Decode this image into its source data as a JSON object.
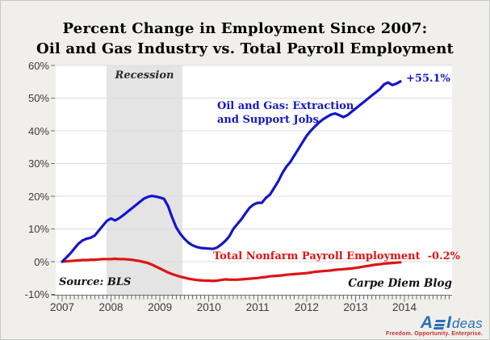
{
  "title": {
    "line1": "Percent Change in Employment Since 2007:",
    "line2": "Oil and Gas Industry vs. Total Payroll Employment"
  },
  "chart_data": {
    "type": "line",
    "title": "Percent Change in Employment Since 2007: Oil and Gas Industry vs. Total Payroll Employment",
    "x_start": "2007-01",
    "x_frequency": "monthly",
    "x_tick_labels": [
      "2007",
      "2008",
      "2009",
      "2010",
      "2011",
      "2012",
      "2013",
      "2014"
    ],
    "y_tick_labels": [
      "60%",
      "50%",
      "40%",
      "30%",
      "20%",
      "10%",
      "0%",
      "-10%"
    ],
    "ylim": [
      -10,
      60
    ],
    "y_step": 10,
    "grid": "horizontal",
    "recession_band": {
      "label": "Recession",
      "start_month": "2007-12",
      "end_month": "2009-06",
      "color": "#e4e4e4"
    },
    "series": [
      {
        "name": "Oil and Gas: Extraction and Support Jobs",
        "label_line1": "Oil and Gas: Extraction",
        "label_line2": "and Support Jobs",
        "end_label": "+55.1%",
        "color": "#1515cb",
        "values": [
          0.0,
          1.2,
          2.5,
          4.0,
          5.5,
          6.5,
          7.0,
          7.3,
          8.0,
          9.5,
          11.0,
          12.5,
          13.2,
          12.6,
          13.3,
          14.2,
          15.2,
          16.2,
          17.2,
          18.2,
          19.2,
          19.8,
          20.1,
          19.9,
          19.6,
          19.2,
          17.0,
          13.5,
          10.5,
          8.5,
          7.0,
          5.8,
          5.0,
          4.5,
          4.2,
          4.1,
          4.0,
          3.9,
          4.3,
          5.2,
          6.3,
          7.7,
          10.0,
          11.5,
          13.0,
          14.8,
          16.5,
          17.5,
          18.0,
          18.0,
          19.5,
          20.5,
          22.5,
          24.5,
          27.0,
          29.0,
          30.5,
          32.5,
          34.5,
          36.5,
          38.5,
          40.0,
          41.3,
          42.5,
          43.5,
          44.3,
          45.0,
          45.3,
          44.8,
          44.2,
          44.8,
          45.8,
          46.8,
          47.8,
          48.8,
          49.8,
          50.8,
          51.8,
          52.8,
          54.2,
          54.8,
          54.0,
          54.4,
          55.1
        ]
      },
      {
        "name": "Total Nonfarm Payroll Employment",
        "label_line1": "Total Nonfarm Payroll Employment",
        "label_line2": "",
        "end_label": "-0.2%",
        "color": "#dd1414",
        "values": [
          0.0,
          0.1,
          0.2,
          0.3,
          0.4,
          0.5,
          0.5,
          0.6,
          0.6,
          0.7,
          0.8,
          0.8,
          0.8,
          0.9,
          0.8,
          0.8,
          0.7,
          0.6,
          0.4,
          0.2,
          -0.1,
          -0.4,
          -0.9,
          -1.5,
          -2.1,
          -2.7,
          -3.3,
          -3.8,
          -4.2,
          -4.6,
          -4.9,
          -5.2,
          -5.4,
          -5.6,
          -5.7,
          -5.8,
          -5.8,
          -5.9,
          -5.8,
          -5.6,
          -5.4,
          -5.5,
          -5.5,
          -5.5,
          -5.4,
          -5.3,
          -5.2,
          -5.1,
          -5.0,
          -4.8,
          -4.7,
          -4.5,
          -4.4,
          -4.3,
          -4.2,
          -4.0,
          -3.9,
          -3.8,
          -3.7,
          -3.6,
          -3.5,
          -3.3,
          -3.1,
          -3.0,
          -2.9,
          -2.8,
          -2.7,
          -2.5,
          -2.4,
          -2.3,
          -2.2,
          -2.1,
          -1.9,
          -1.7,
          -1.5,
          -1.3,
          -1.1,
          -0.9,
          -0.8,
          -0.6,
          -0.5,
          -0.4,
          -0.3,
          -0.2
        ]
      }
    ],
    "annotations": {
      "source": "Source: BLS",
      "credit": "Carpe Diem Blog"
    },
    "colors": {
      "plot_background": "#ffffff",
      "page_background": "#f0efec",
      "gridline": "#dcdcdc",
      "axis": "#6e6e6e"
    }
  },
  "logo": {
    "brand_a": "A",
    "brand_i": "I",
    "brand_rest": "deas",
    "tagline": "Freedom. Opportunity. Enterprise."
  }
}
